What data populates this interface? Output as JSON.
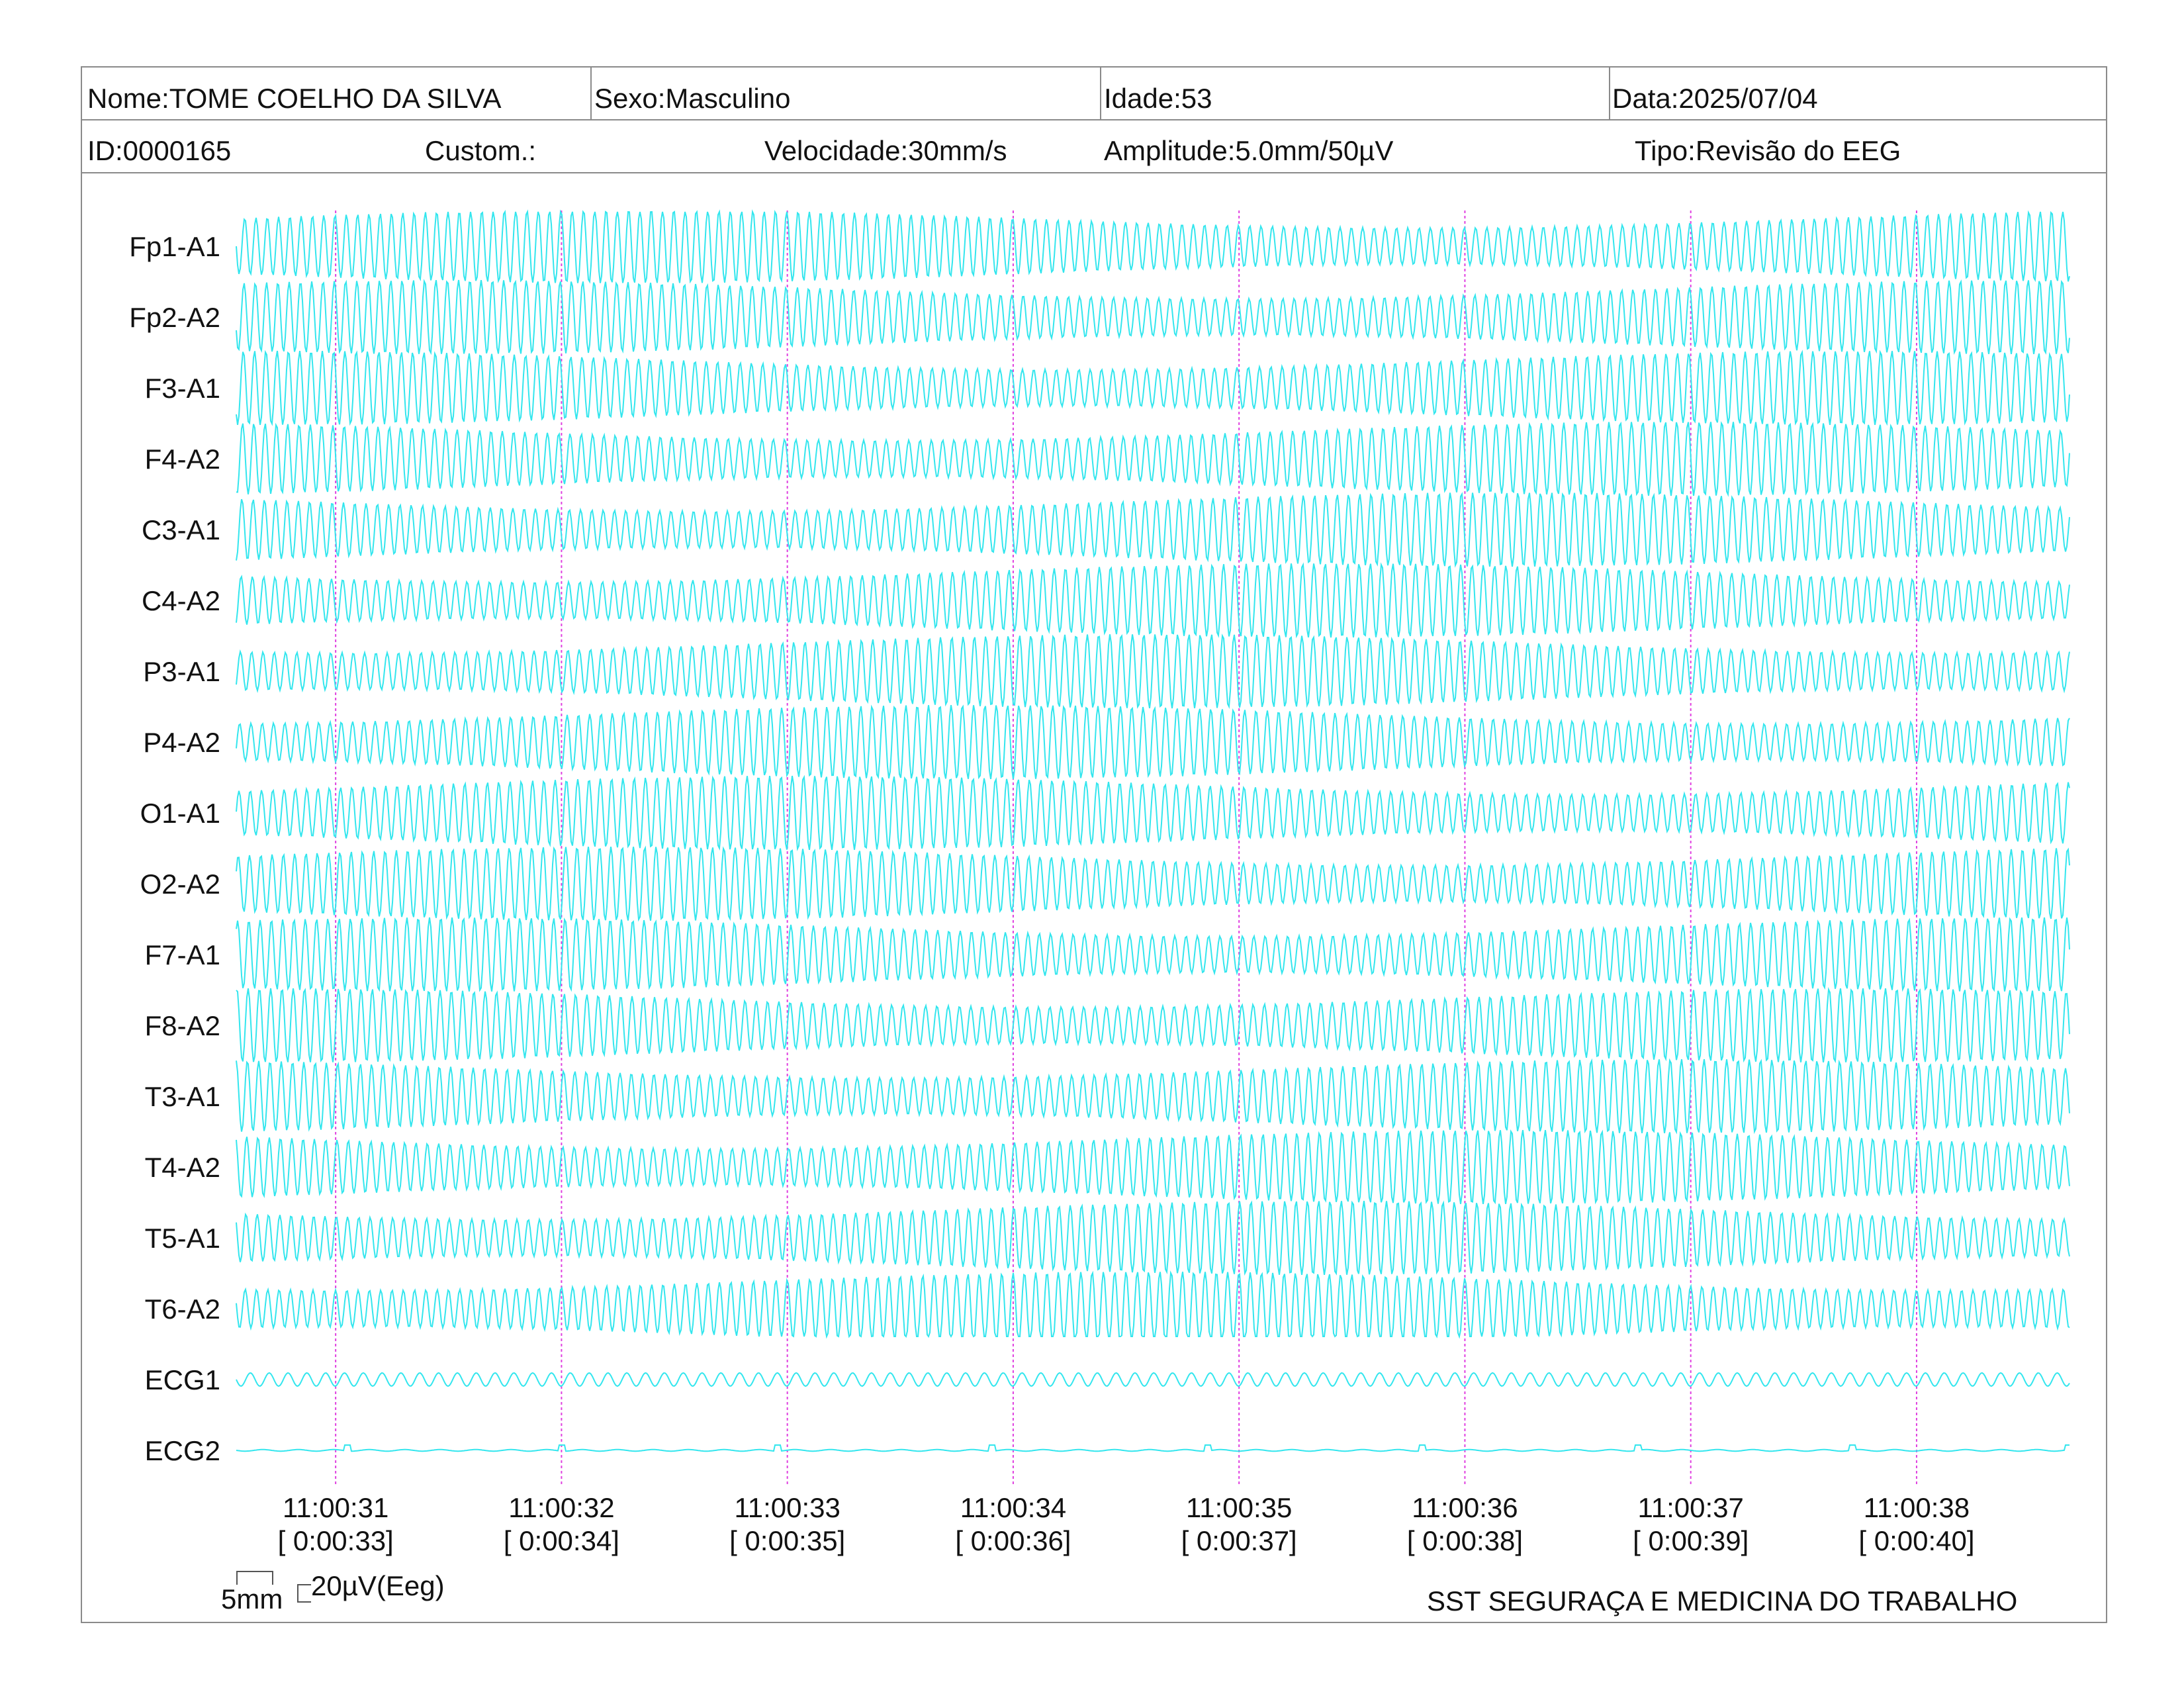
{
  "header": {
    "name": "Nome:TOME COELHO DA SILVA",
    "sex": "Sexo:Masculino",
    "age": "Idade:53",
    "date": "Data:2025/07/04",
    "id": "ID:0000165",
    "custom": "Custom.:",
    "speed": "Velocidade:30mm/s",
    "amplitude": "Amplitude:5.0mm/50µV",
    "type": "Tipo:Revisão do EEG"
  },
  "scale_bar": {
    "length_label": "5mm",
    "amplitude_label": "20µV(Eeg)"
  },
  "footer": {
    "organization": "SST SEGURAÇA E MEDICINA DO TRABALHO"
  },
  "colors": {
    "trace": "#33e6ee",
    "marker": "#e040e0",
    "border": "#8a8a8a"
  },
  "chart_data": {
    "type": "line",
    "channels": [
      "Fp1-A1",
      "Fp2-A2",
      "F3-A1",
      "F4-A2",
      "C3-A1",
      "C4-A2",
      "P3-A1",
      "P4-A2",
      "O1-A1",
      "O2-A2",
      "F7-A1",
      "F8-A2",
      "T3-A1",
      "T4-A2",
      "T5-A1",
      "T6-A2",
      "ECG1",
      "ECG2"
    ],
    "time_ticks": [
      "11:00:31",
      "11:00:32",
      "11:00:33",
      "11:00:34",
      "11:00:35",
      "11:00:36",
      "11:00:37",
      "11:00:38"
    ],
    "elapsed_ticks": [
      "[ 0:00:33]",
      "[ 0:00:34]",
      "[ 0:00:35]",
      "[ 0:00:36]",
      "[ 0:00:37]",
      "[ 0:00:38]",
      "[ 0:00:39]",
      "[ 0:00:40]"
    ],
    "x_range_seconds": [
      30.56,
      38.68
    ],
    "eeg_oscillation_hz": 20,
    "ecg1_oscillation_hz": 12,
    "gridlines": "vertical dotted at each second"
  }
}
